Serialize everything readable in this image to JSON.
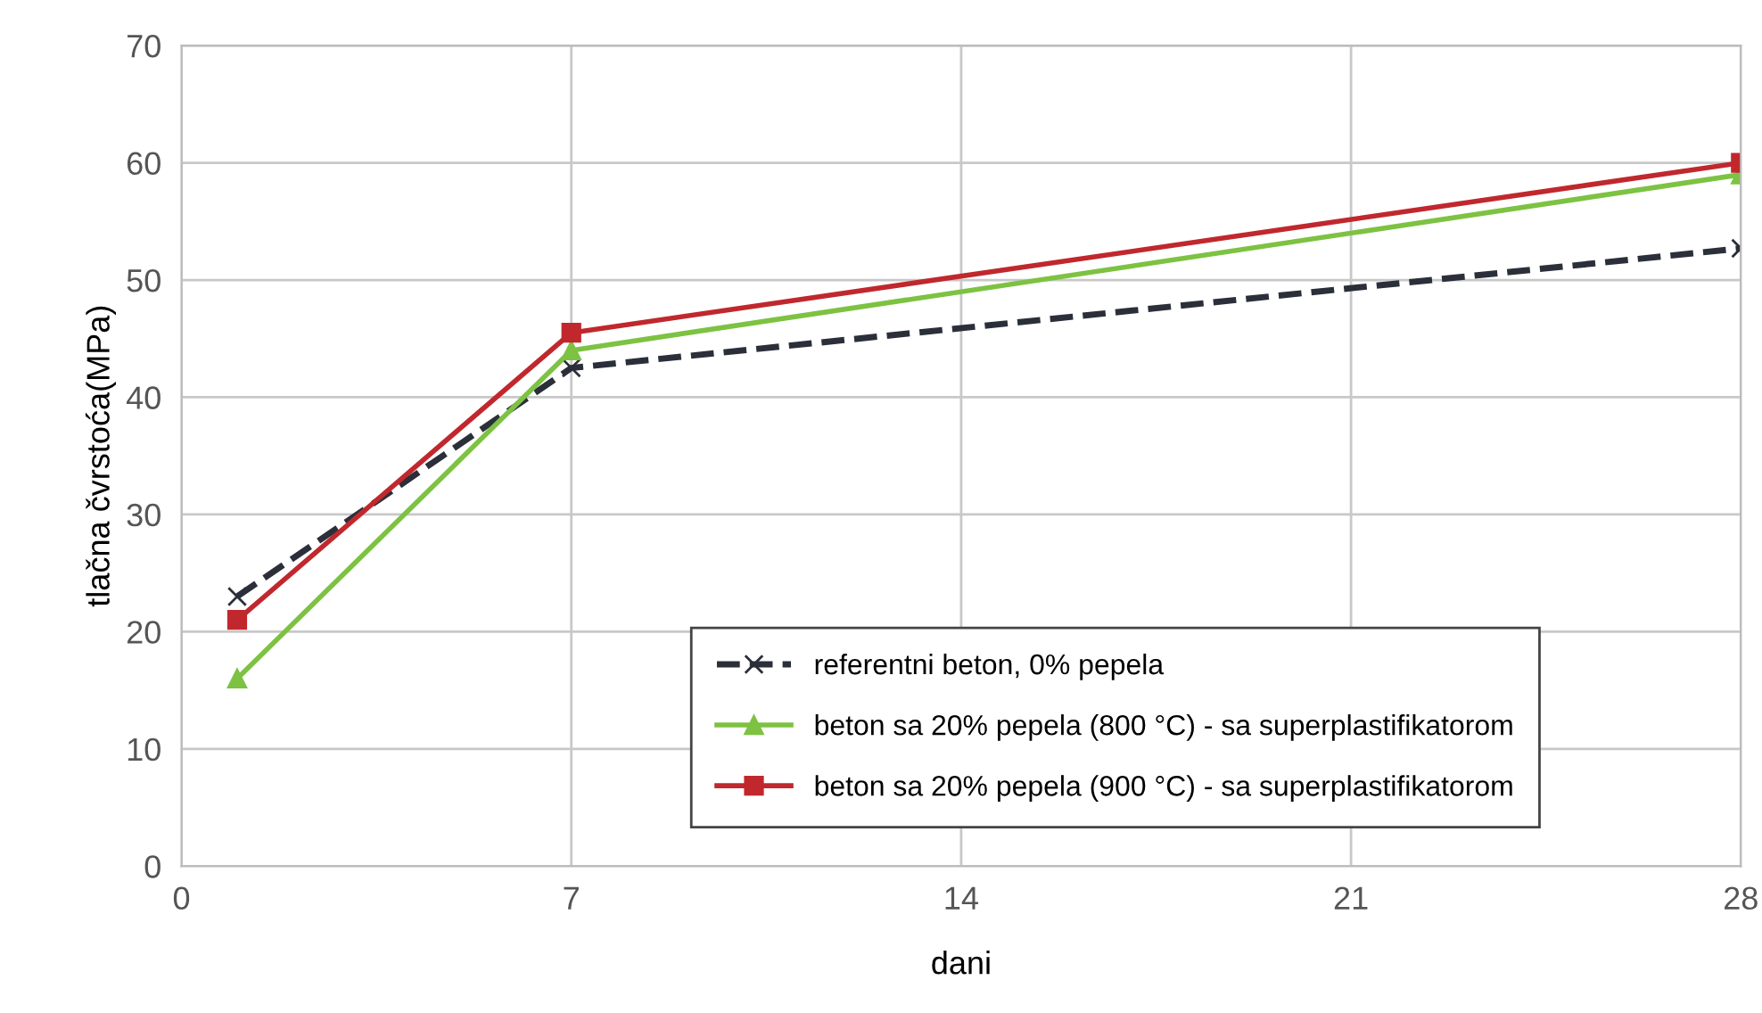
{
  "chart_data": {
    "type": "line",
    "xlabel": "dani",
    "ylabel": "tlačna čvrstoća(MPa)",
    "x": [
      1,
      7,
      28
    ],
    "series": [
      {
        "name": "referentni beton, 0% pepela",
        "color": "#2b2f3a",
        "values": [
          23,
          42.5,
          52.7
        ],
        "marker": "cross",
        "line_style": "dashed"
      },
      {
        "name": "beton sa 20% pepela (800 °C) - sa superplastifikatorom",
        "color": "#7dc242",
        "values": [
          16,
          44,
          59
        ],
        "marker": "triangle",
        "line_style": "solid"
      },
      {
        "name": "beton sa 20% pepela (900 °C) - sa superplastifikatorom",
        "color": "#c0282d",
        "values": [
          21,
          45.5,
          60
        ],
        "marker": "square",
        "line_style": "solid"
      }
    ],
    "xlim": [
      0,
      28
    ],
    "xticks": [
      0,
      7,
      14,
      21,
      28
    ],
    "ylim": [
      0,
      70
    ],
    "yticks": [
      0,
      10,
      20,
      30,
      40,
      50,
      60,
      70
    ],
    "grid": true,
    "legend": "bottom right"
  }
}
